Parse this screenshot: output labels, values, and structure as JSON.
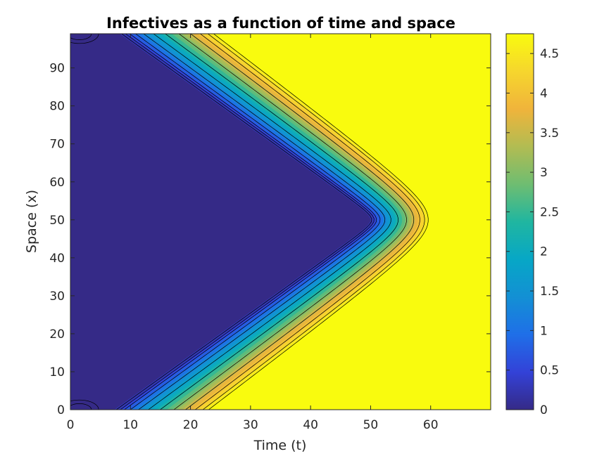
{
  "chart_data": {
    "type": "heatmap",
    "subtype": "filled-contour",
    "title": "Infectives as a function of time and space",
    "xlabel": "Time (t)",
    "ylabel": "Space (x)",
    "xlim": [
      0,
      70
    ],
    "ylim": [
      0,
      99
    ],
    "xticks": [
      0,
      10,
      20,
      30,
      40,
      50,
      60
    ],
    "yticks": [
      0,
      10,
      20,
      30,
      40,
      50,
      60,
      70,
      80,
      90
    ],
    "colorbar": {
      "range": [
        0,
        4.75
      ],
      "ticks": [
        0,
        0.5,
        1,
        1.5,
        2,
        2.5,
        3,
        3.5,
        4,
        4.5
      ],
      "tick_labels": [
        "0",
        "0.5",
        "1",
        "1.5",
        "2",
        "2.5",
        "3",
        "3.5",
        "4",
        "4.5"
      ],
      "colormap": "parula"
    },
    "wavefront": {
      "min_value": 0,
      "max_value": 4.75,
      "origin_x": 50,
      "front_start_t": 50,
      "front_end_t": 60,
      "corner_t_at_x0": 6,
      "front_t_at_x0": [
        18,
        24
      ]
    }
  }
}
